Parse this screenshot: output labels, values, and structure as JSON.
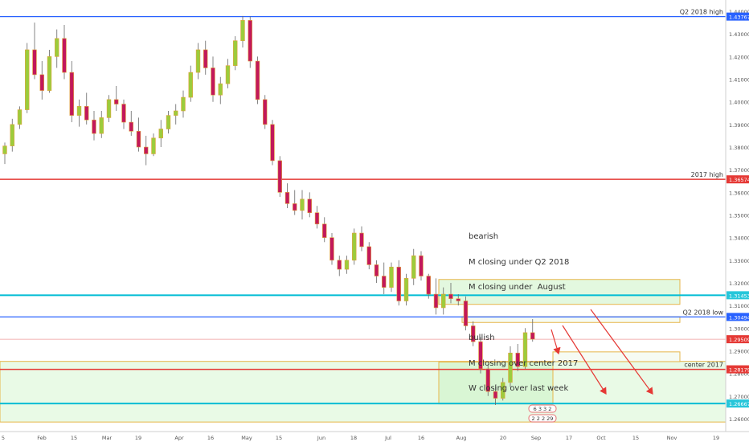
{
  "chart_data": {
    "type": "candlestick",
    "series": [
      {
        "x": 0,
        "open": 1.377,
        "high": 1.382,
        "low": 1.3725,
        "close": 1.3805
      },
      {
        "x": 1,
        "open": 1.3805,
        "high": 1.3925,
        "low": 1.378,
        "close": 1.39
      },
      {
        "x": 2,
        "open": 1.39,
        "high": 1.398,
        "low": 1.388,
        "close": 1.3965
      },
      {
        "x": 3,
        "open": 1.3965,
        "high": 1.426,
        "low": 1.395,
        "close": 1.423
      },
      {
        "x": 4,
        "open": 1.423,
        "high": 1.435,
        "low": 1.41,
        "close": 1.412
      },
      {
        "x": 5,
        "open": 1.412,
        "high": 1.418,
        "low": 1.401,
        "close": 1.405
      },
      {
        "x": 6,
        "open": 1.405,
        "high": 1.423,
        "low": 1.404,
        "close": 1.42
      },
      {
        "x": 7,
        "open": 1.42,
        "high": 1.432,
        "low": 1.415,
        "close": 1.428
      },
      {
        "x": 8,
        "open": 1.428,
        "high": 1.434,
        "low": 1.41,
        "close": 1.413
      },
      {
        "x": 9,
        "open": 1.413,
        "high": 1.418,
        "low": 1.391,
        "close": 1.394
      },
      {
        "x": 10,
        "open": 1.394,
        "high": 1.401,
        "low": 1.389,
        "close": 1.398
      },
      {
        "x": 11,
        "open": 1.398,
        "high": 1.404,
        "low": 1.39,
        "close": 1.392
      },
      {
        "x": 12,
        "open": 1.392,
        "high": 1.396,
        "low": 1.383,
        "close": 1.386
      },
      {
        "x": 13,
        "open": 1.386,
        "high": 1.396,
        "low": 1.384,
        "close": 1.393
      },
      {
        "x": 14,
        "open": 1.393,
        "high": 1.403,
        "low": 1.391,
        "close": 1.401
      },
      {
        "x": 15,
        "open": 1.401,
        "high": 1.407,
        "low": 1.396,
        "close": 1.399
      },
      {
        "x": 16,
        "open": 1.399,
        "high": 1.401,
        "low": 1.388,
        "close": 1.391
      },
      {
        "x": 17,
        "open": 1.391,
        "high": 1.396,
        "low": 1.385,
        "close": 1.387
      },
      {
        "x": 18,
        "open": 1.387,
        "high": 1.393,
        "low": 1.378,
        "close": 1.38
      },
      {
        "x": 19,
        "open": 1.38,
        "high": 1.385,
        "low": 1.372,
        "close": 1.377
      },
      {
        "x": 20,
        "open": 1.377,
        "high": 1.386,
        "low": 1.376,
        "close": 1.384
      },
      {
        "x": 21,
        "open": 1.384,
        "high": 1.392,
        "low": 1.38,
        "close": 1.388
      },
      {
        "x": 22,
        "open": 1.388,
        "high": 1.396,
        "low": 1.386,
        "close": 1.394
      },
      {
        "x": 23,
        "open": 1.394,
        "high": 1.399,
        "low": 1.39,
        "close": 1.396
      },
      {
        "x": 24,
        "open": 1.396,
        "high": 1.405,
        "low": 1.393,
        "close": 1.402
      },
      {
        "x": 25,
        "open": 1.402,
        "high": 1.416,
        "low": 1.4,
        "close": 1.413
      },
      {
        "x": 26,
        "open": 1.413,
        "high": 1.426,
        "low": 1.41,
        "close": 1.423
      },
      {
        "x": 27,
        "open": 1.423,
        "high": 1.427,
        "low": 1.412,
        "close": 1.415
      },
      {
        "x": 28,
        "open": 1.415,
        "high": 1.42,
        "low": 1.4,
        "close": 1.403
      },
      {
        "x": 29,
        "open": 1.403,
        "high": 1.411,
        "low": 1.399,
        "close": 1.408
      },
      {
        "x": 30,
        "open": 1.408,
        "high": 1.419,
        "low": 1.406,
        "close": 1.416
      },
      {
        "x": 31,
        "open": 1.416,
        "high": 1.429,
        "low": 1.414,
        "close": 1.427
      },
      {
        "x": 32,
        "open": 1.427,
        "high": 1.438,
        "low": 1.424,
        "close": 1.436
      },
      {
        "x": 33,
        "open": 1.436,
        "high": 1.4377,
        "low": 1.415,
        "close": 1.418
      },
      {
        "x": 34,
        "open": 1.418,
        "high": 1.42,
        "low": 1.399,
        "close": 1.401
      },
      {
        "x": 35,
        "open": 1.401,
        "high": 1.403,
        "low": 1.388,
        "close": 1.39
      },
      {
        "x": 36,
        "open": 1.39,
        "high": 1.392,
        "low": 1.372,
        "close": 1.374
      },
      {
        "x": 37,
        "open": 1.374,
        "high": 1.376,
        "low": 1.358,
        "close": 1.36
      },
      {
        "x": 38,
        "open": 1.36,
        "high": 1.364,
        "low": 1.353,
        "close": 1.355
      },
      {
        "x": 39,
        "open": 1.355,
        "high": 1.361,
        "low": 1.35,
        "close": 1.352
      },
      {
        "x": 40,
        "open": 1.352,
        "high": 1.361,
        "low": 1.348,
        "close": 1.357
      },
      {
        "x": 41,
        "open": 1.357,
        "high": 1.36,
        "low": 1.349,
        "close": 1.351
      },
      {
        "x": 42,
        "open": 1.351,
        "high": 1.354,
        "low": 1.344,
        "close": 1.346
      },
      {
        "x": 43,
        "open": 1.346,
        "high": 1.349,
        "low": 1.338,
        "close": 1.34
      },
      {
        "x": 44,
        "open": 1.34,
        "high": 1.342,
        "low": 1.328,
        "close": 1.33
      },
      {
        "x": 45,
        "open": 1.33,
        "high": 1.332,
        "low": 1.323,
        "close": 1.326
      },
      {
        "x": 46,
        "open": 1.326,
        "high": 1.332,
        "low": 1.324,
        "close": 1.33
      },
      {
        "x": 47,
        "open": 1.33,
        "high": 1.344,
        "low": 1.328,
        "close": 1.342
      },
      {
        "x": 48,
        "open": 1.342,
        "high": 1.345,
        "low": 1.334,
        "close": 1.336
      },
      {
        "x": 49,
        "open": 1.336,
        "high": 1.338,
        "low": 1.326,
        "close": 1.328
      },
      {
        "x": 50,
        "open": 1.328,
        "high": 1.33,
        "low": 1.32,
        "close": 1.323
      },
      {
        "x": 51,
        "open": 1.323,
        "high": 1.329,
        "low": 1.315,
        "close": 1.318
      },
      {
        "x": 52,
        "open": 1.318,
        "high": 1.329,
        "low": 1.316,
        "close": 1.327
      },
      {
        "x": 53,
        "open": 1.327,
        "high": 1.33,
        "low": 1.31,
        "close": 1.312
      },
      {
        "x": 54,
        "open": 1.312,
        "high": 1.324,
        "low": 1.31,
        "close": 1.322
      },
      {
        "x": 55,
        "open": 1.322,
        "high": 1.335,
        "low": 1.319,
        "close": 1.332
      },
      {
        "x": 56,
        "open": 1.332,
        "high": 1.334,
        "low": 1.321,
        "close": 1.323
      },
      {
        "x": 57,
        "open": 1.323,
        "high": 1.324,
        "low": 1.313,
        "close": 1.315
      },
      {
        "x": 58,
        "open": 1.315,
        "high": 1.322,
        "low": 1.306,
        "close": 1.309
      },
      {
        "x": 59,
        "open": 1.309,
        "high": 1.318,
        "low": 1.306,
        "close": 1.315
      },
      {
        "x": 60,
        "open": 1.315,
        "high": 1.32,
        "low": 1.311,
        "close": 1.313
      },
      {
        "x": 61,
        "open": 1.313,
        "high": 1.315,
        "low": 1.31,
        "close": 1.312
      },
      {
        "x": 62,
        "open": 1.312,
        "high": 1.314,
        "low": 1.299,
        "close": 1.301
      },
      {
        "x": 63,
        "open": 1.301,
        "high": 1.303,
        "low": 1.292,
        "close": 1.294
      },
      {
        "x": 64,
        "open": 1.294,
        "high": 1.296,
        "low": 1.28,
        "close": 1.282
      },
      {
        "x": 65,
        "open": 1.282,
        "high": 1.284,
        "low": 1.27,
        "close": 1.272
      },
      {
        "x": 66,
        "open": 1.272,
        "high": 1.275,
        "low": 1.266,
        "close": 1.269
      },
      {
        "x": 67,
        "open": 1.269,
        "high": 1.278,
        "low": 1.268,
        "close": 1.276
      },
      {
        "x": 68,
        "open": 1.276,
        "high": 1.292,
        "low": 1.274,
        "close": 1.289
      },
      {
        "x": 69,
        "open": 1.289,
        "high": 1.293,
        "low": 1.281,
        "close": 1.283
      },
      {
        "x": 70,
        "open": 1.283,
        "high": 1.3,
        "low": 1.282,
        "close": 1.298
      },
      {
        "x": 71,
        "open": 1.298,
        "high": 1.304,
        "low": 1.294,
        "close": 1.2951
      }
    ],
    "yaxis": {
      "range": [
        1.255,
        1.445
      ],
      "ticks": [
        "1.26000",
        "1.27000",
        "1.28000",
        "1.29000",
        "1.30000",
        "1.31000",
        "1.32000",
        "1.33000",
        "1.34000",
        "1.35000",
        "1.36000",
        "1.37000",
        "1.38000",
        "1.39000",
        "1.40000",
        "1.41000",
        "1.42000",
        "1.43000",
        "1.44000"
      ],
      "labels": {
        "q2_high": "1.43767",
        "y2017_high": "1.36574",
        "cyan_upper": "1.31453",
        "q2_low": "1.30494",
        "current": "1.29509",
        "center_2017": "1.28179",
        "cyan_lower": "1.26667"
      }
    },
    "xaxis": {
      "labels": [
        "5",
        "Feb",
        "15",
        "Mar",
        "19",
        "Apr",
        "16",
        "May",
        "15",
        "Jun",
        "18",
        "Jul",
        "16",
        "Aug",
        "20",
        "Sep",
        "17",
        "Oct",
        "15",
        "Nov",
        "19"
      ]
    },
    "levels": {
      "q2_high": {
        "label": "Q2 2018 high",
        "value": 1.43767
      },
      "y2017_high": {
        "label": "2017 high",
        "value": 1.36574
      },
      "cyan_upper": {
        "value": 1.31453
      },
      "q2_low": {
        "label": "Q2 2018 low",
        "value": 1.30494
      },
      "current": {
        "value": 1.29509
      },
      "center_2017": {
        "label": "center 2017",
        "value": 1.28179
      },
      "cyan_lower": {
        "value": 1.26667
      }
    },
    "note": {
      "lines": [
        "bearish",
        "M closing under Q2 2018",
        "M closing under  August",
        "",
        "bullish",
        "M closing over center 2017",
        "W closing over last week"
      ]
    },
    "countdown": {
      "row1": [
        "6",
        "3",
        "3",
        "2"
      ],
      "row2": [
        "2",
        "2",
        "2",
        "29"
      ]
    },
    "colors": {
      "up": "#9ccc3c",
      "down": "#c2185b",
      "body_border": "#e0a23a",
      "q2_line": "#2962ff",
      "red_line": "#e53935",
      "cyan_line": "#00bcd4",
      "zone_fill": "#d7f5d2",
      "zone_border": "#e6b54a"
    }
  }
}
